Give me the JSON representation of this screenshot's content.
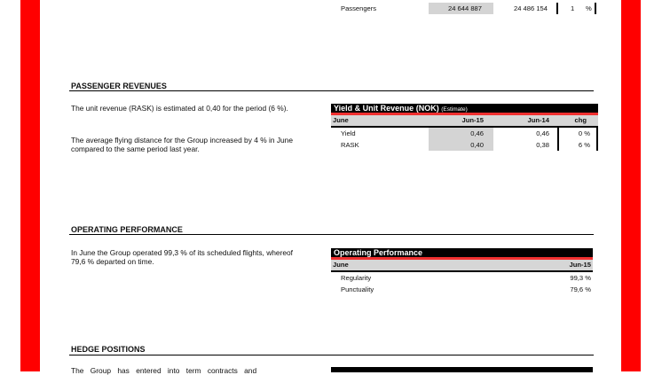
{
  "top_row": {
    "label": "Passengers",
    "current": "24 644 887",
    "previous": "24 486 154",
    "chg": "1",
    "unit": "%"
  },
  "passenger_revenues": {
    "heading": "PASSENGER REVENUES",
    "paragraphs": [
      "The unit revenue (RASK) is estimated at 0,40 for the period (6 %).",
      "The average flying distance for the Group increased by 4 % in June compared to the same period last year."
    ],
    "table": {
      "title": "Yield & Unit Revenue",
      "title_unit": "(NOK)",
      "title_note": "(Estimate)",
      "columns": [
        "June",
        "Jun-15",
        "Jun-14",
        "chg"
      ],
      "rows": [
        {
          "label": "Yield",
          "jun15": "0,46",
          "jun14": "0,46",
          "chg": "0 %"
        },
        {
          "label": "RASK",
          "jun15": "0,40",
          "jun14": "0,38",
          "chg": "6 %"
        }
      ]
    }
  },
  "operating_performance": {
    "heading": "OPERATING PERFORMANCE",
    "paragraph": "In June the Group operated 99,3 % of its scheduled flights, whereof 79,6 % departed on time.",
    "table": {
      "title": "Operating Performance",
      "columns": [
        "June",
        "Jun-15"
      ],
      "rows": [
        {
          "label": "Regularity",
          "value": "99,3 %"
        },
        {
          "label": "Punctuality",
          "value": "79,6 %"
        }
      ]
    }
  },
  "hedge_positions": {
    "heading": "HEDGE POSITIONS",
    "paragraph": "The Group has entered into term contracts and"
  },
  "colors": {
    "border": "#ff0000",
    "accent_line": "#f03030",
    "header_bg": "#000000",
    "subheader_bg": "#d6d6d6"
  }
}
